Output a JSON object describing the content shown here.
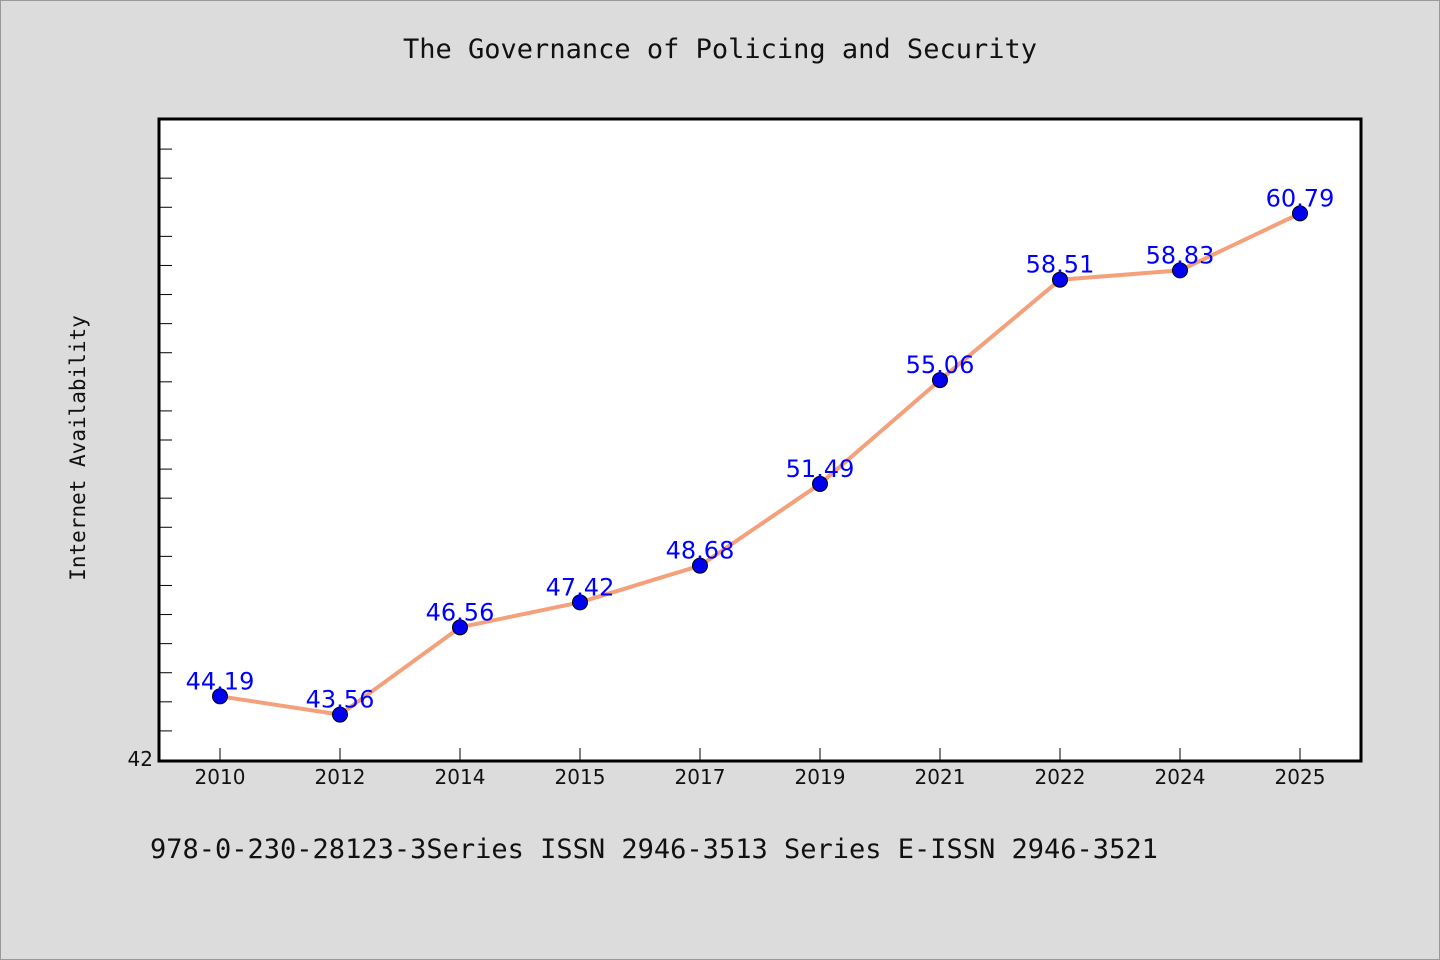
{
  "chart_data": {
    "type": "line",
    "title": "The Governance of Policing and Security",
    "xlabel": "",
    "ylabel": "Internet Availability",
    "categories": [
      "2010",
      "2012",
      "2014",
      "2015",
      "2017",
      "2019",
      "2021",
      "2022",
      "2024",
      "2025"
    ],
    "series": [
      {
        "values": [
          44.19,
          43.56,
          46.56,
          47.42,
          48.68,
          51.49,
          55.06,
          58.51,
          58.83,
          60.79
        ],
        "labels": [
          "44.19",
          "43.56",
          "46.56",
          "47.42",
          "48.68",
          "51.49",
          "55.06",
          "58.51",
          "58.83",
          "60.79"
        ],
        "line_color": "#f4a07a",
        "marker_color": "#0000ee"
      }
    ],
    "ylim": [
      42,
      64
    ],
    "ytick_labels": [
      "42"
    ],
    "minor_tick_step": 1,
    "grid": false,
    "legend": "none",
    "label_color": "#0000ff",
    "plot_background": "#ffffff",
    "page_background": "#dcdcdc"
  },
  "footer": "978-0-230-28123-3Series ISSN 2946-3513 Series E-ISSN 2946-3521"
}
